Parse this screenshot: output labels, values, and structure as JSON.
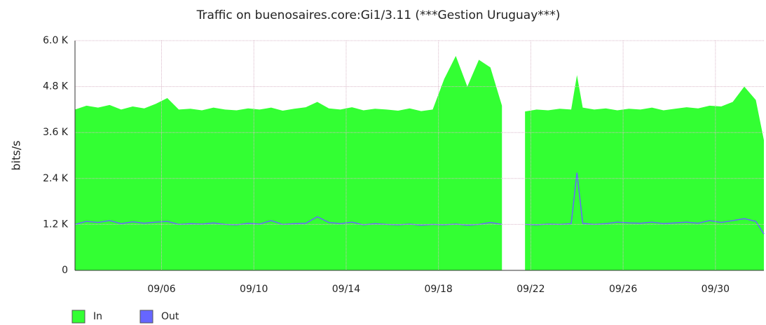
{
  "chart_data": {
    "type": "area",
    "title": "Traffic on buenosaires.core:Gi1/3.11 (***Gestion Uruguay***)",
    "y_label": "bits/s",
    "x": [
      2.25,
      2.75,
      3.25,
      3.75,
      4.25,
      4.75,
      5.25,
      5.75,
      6.25,
      6.75,
      7.25,
      7.75,
      8.25,
      8.75,
      9.25,
      9.75,
      10.25,
      10.75,
      11.25,
      11.75,
      12.25,
      12.75,
      13.25,
      13.75,
      14.25,
      14.75,
      15.25,
      15.75,
      16.25,
      16.75,
      17.25,
      17.75,
      18.25,
      18.75,
      19.25,
      19.75,
      20.25,
      20.75,
      21.25,
      21.75,
      22.25,
      22.75,
      23.25,
      23.75,
      24.0,
      24.25,
      24.75,
      25.25,
      25.75,
      26.25,
      26.75,
      27.25,
      27.75,
      28.25,
      28.75,
      29.25,
      29.75,
      30.25,
      30.75,
      31.25,
      31.75,
      32.1
    ],
    "series": [
      {
        "name": "In",
        "color": "#33ff33",
        "values": [
          4200,
          4300,
          4250,
          4320,
          4200,
          4280,
          4230,
          4350,
          4500,
          4200,
          4220,
          4180,
          4250,
          4200,
          4180,
          4230,
          4200,
          4250,
          4170,
          4220,
          4260,
          4400,
          4230,
          4200,
          4260,
          4180,
          4220,
          4200,
          4170,
          4230,
          4160,
          4200,
          5000,
          5600,
          4800,
          5500,
          5300,
          4300,
          null,
          4150,
          4200,
          4180,
          4220,
          4200,
          5100,
          4250,
          4200,
          4230,
          4180,
          4220,
          4200,
          4250,
          4180,
          4220,
          4260,
          4230,
          4300,
          4280,
          4400,
          4800,
          4450,
          3400
        ]
      },
      {
        "name": "Out",
        "color": "#6666ff",
        "values": [
          1200,
          1280,
          1250,
          1300,
          1220,
          1270,
          1230,
          1260,
          1280,
          1200,
          1220,
          1210,
          1240,
          1200,
          1190,
          1230,
          1210,
          1300,
          1200,
          1220,
          1230,
          1400,
          1250,
          1220,
          1260,
          1190,
          1220,
          1200,
          1190,
          1210,
          1180,
          1200,
          1190,
          1210,
          1180,
          1200,
          1250,
          1200,
          null,
          1200,
          1190,
          1210,
          1200,
          1220,
          2550,
          1230,
          1200,
          1220,
          1260,
          1240,
          1230,
          1260,
          1220,
          1240,
          1260,
          1230,
          1300,
          1250,
          1300,
          1350,
          1280,
          950
        ]
      }
    ],
    "xlim": [
      2.25,
      32.1
    ],
    "xticks": [
      {
        "value": 6,
        "label": "09/06"
      },
      {
        "value": 10,
        "label": "09/10"
      },
      {
        "value": 14,
        "label": "09/14"
      },
      {
        "value": 18,
        "label": "09/18"
      },
      {
        "value": 22,
        "label": "09/22"
      },
      {
        "value": 26,
        "label": "09/26"
      },
      {
        "value": 30,
        "label": "09/30"
      }
    ],
    "ylim": [
      0,
      6000
    ],
    "yticks": [
      0,
      {
        "value": 1200,
        "label": "1.2 K"
      },
      {
        "value": 2400,
        "label": "2.4 K"
      },
      {
        "value": 3600,
        "label": "3.6 K"
      },
      {
        "value": 4800,
        "label": "4.8 K"
      },
      {
        "value": 6000,
        "label": "6.0 K"
      }
    ],
    "grid": true
  }
}
